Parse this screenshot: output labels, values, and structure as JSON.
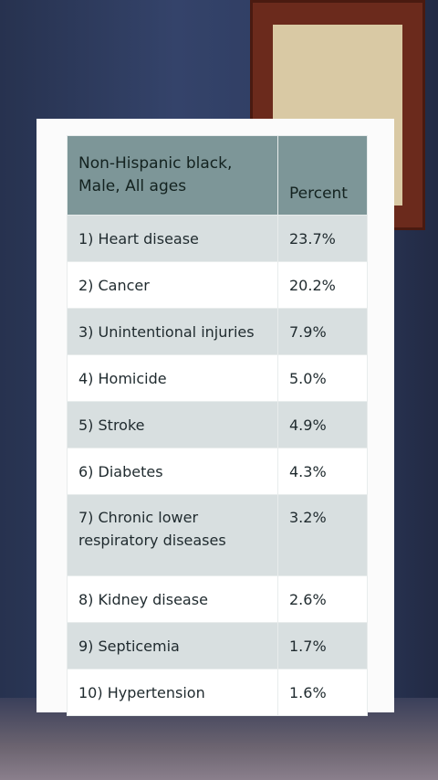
{
  "table": {
    "header": [
      "Non-Hispanic black,\nMale, All ages",
      "Percent"
    ],
    "rows": [
      [
        "1) Heart disease",
        "23.7%"
      ],
      [
        "2) Cancer",
        "20.2%"
      ],
      [
        "3) Unintentional injuries",
        "7.9%"
      ],
      [
        "4) Homicide",
        "5.0%"
      ],
      [
        "5) Stroke",
        "4.9%"
      ],
      [
        "6) Diabetes",
        "4.3%"
      ],
      [
        "7) Chronic lower\nrespiratory diseases",
        "3.2%"
      ],
      [
        "8) Kidney disease",
        "2.6%"
      ],
      [
        "9) Septicemia",
        "1.7%"
      ],
      [
        "10) Hypertension",
        "1.6%"
      ]
    ]
  }
}
